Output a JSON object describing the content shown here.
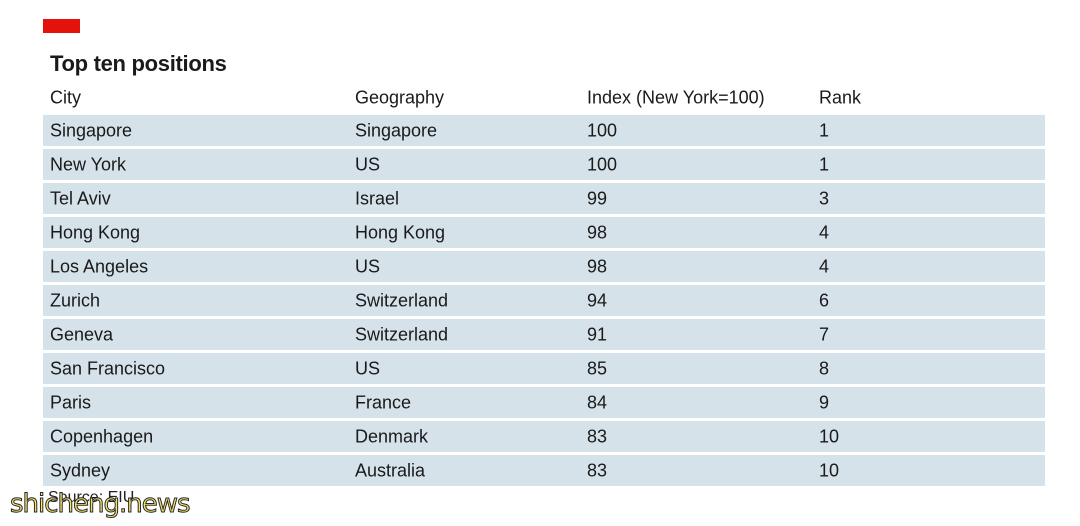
{
  "header": {
    "title": "Top ten positions",
    "accent_color": "#e3120b"
  },
  "chart_data": {
    "type": "table",
    "title": "Top ten positions",
    "columns": [
      "City",
      "Geography",
      "Index (New York=100)",
      "Rank"
    ],
    "rows": [
      [
        "Singapore",
        "Singapore",
        "100",
        "1"
      ],
      [
        "New York",
        "US",
        "100",
        "1"
      ],
      [
        "Tel Aviv",
        "Israel",
        "99",
        "3"
      ],
      [
        "Hong Kong",
        "Hong Kong",
        "98",
        "4"
      ],
      [
        "Los Angeles",
        "US",
        "98",
        "4"
      ],
      [
        "Zurich",
        "Switzerland",
        "94",
        "6"
      ],
      [
        "Geneva",
        "Switzerland",
        "91",
        "7"
      ],
      [
        "San Francisco",
        "US",
        "85",
        "8"
      ],
      [
        "Paris",
        "France",
        "84",
        "9"
      ],
      [
        "Copenhagen",
        "Denmark",
        "83",
        "10"
      ],
      [
        "Sydney",
        "Australia",
        "83",
        "10"
      ]
    ],
    "row_color": "#d5e2ea"
  },
  "footer": {
    "source": "Source: EIU",
    "watermark": "shicheng.news"
  }
}
